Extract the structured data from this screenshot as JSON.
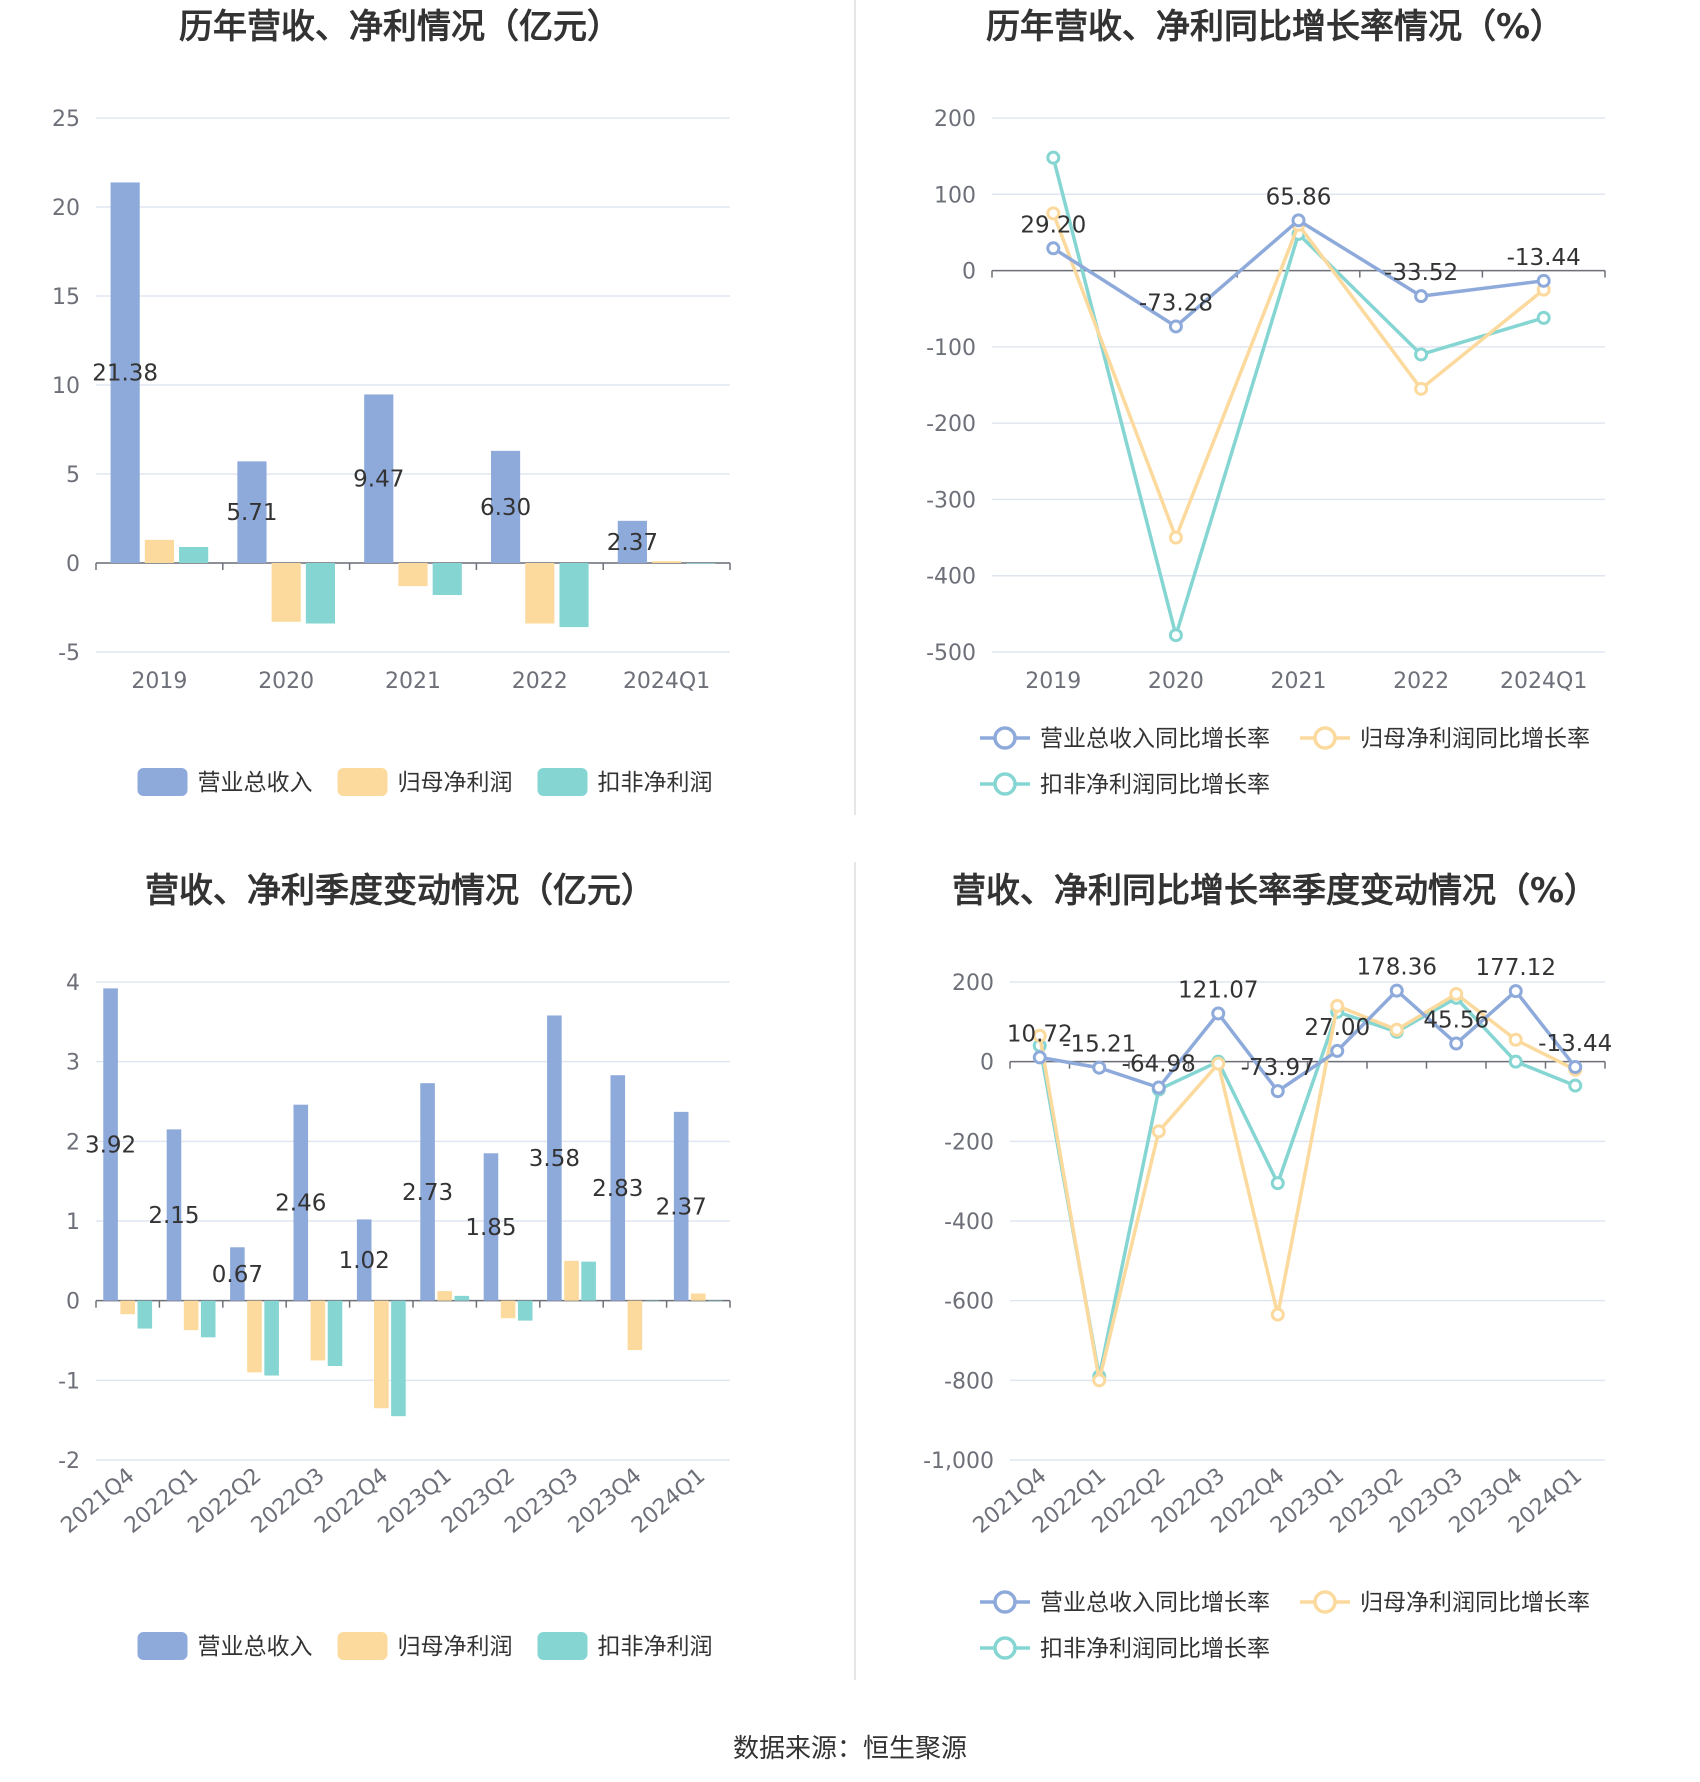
{
  "source_prefix": "数据来源：",
  "source_name": "恒生聚源",
  "chart_data": [
    {
      "type": "bar",
      "title": "历年营收、净利情况（亿元）",
      "categories": [
        "2019",
        "2020",
        "2021",
        "2022",
        "2024Q1"
      ],
      "ylim": [
        -5,
        25
      ],
      "yticks": [
        -5,
        0,
        5,
        10,
        15,
        20,
        25
      ],
      "series": [
        {
          "name": "营业总收入",
          "color": "#8eaadb",
          "values": [
            21.38,
            5.71,
            9.47,
            6.3,
            2.37
          ],
          "labels": [
            "21.38",
            "5.71",
            "9.47",
            "6.30",
            "2.37"
          ]
        },
        {
          "name": "归母净利润",
          "color": "#fcd99c",
          "values": [
            1.3,
            -3.3,
            -1.3,
            -3.4,
            0.1
          ]
        },
        {
          "name": "扣非净利润",
          "color": "#85d5d3",
          "values": [
            0.9,
            -3.4,
            -1.8,
            -3.6,
            0
          ]
        }
      ],
      "legend": "bottom"
    },
    {
      "type": "line",
      "title": "历年营收、净利同比增长率情况（%）",
      "categories": [
        "2019",
        "2020",
        "2021",
        "2022",
        "2024Q1"
      ],
      "ylim": [
        -500,
        200
      ],
      "yticks": [
        -500,
        -400,
        -300,
        -200,
        -100,
        0,
        100,
        200
      ],
      "series": [
        {
          "name": "营业总收入同比增长率",
          "color": "#8eaadb",
          "values": [
            29.2,
            -73.28,
            65.86,
            -33.52,
            -13.44
          ],
          "labels": [
            "29.20",
            "-73.28",
            "65.86",
            "-33.52",
            "-13.44"
          ]
        },
        {
          "name": "归母净利润同比增长率",
          "color": "#fcd99c",
          "values": [
            75,
            -350,
            60,
            -155,
            -25
          ]
        },
        {
          "name": "扣非净利润同比增长率",
          "color": "#85d5d3",
          "values": [
            148,
            -478,
            48,
            -110,
            -62
          ]
        }
      ],
      "legend": "bottom"
    },
    {
      "type": "bar",
      "title": "营收、净利季度变动情况（亿元）",
      "categories": [
        "2021Q4",
        "2022Q1",
        "2022Q2",
        "2022Q3",
        "2022Q4",
        "2023Q1",
        "2023Q2",
        "2023Q3",
        "2023Q4",
        "2024Q1"
      ],
      "ylim": [
        -2,
        4
      ],
      "yticks": [
        -2,
        -1,
        0,
        1,
        2,
        3,
        4
      ],
      "series": [
        {
          "name": "营业总收入",
          "color": "#8eaadb",
          "values": [
            3.92,
            2.15,
            0.67,
            2.46,
            1.02,
            2.73,
            1.85,
            3.58,
            2.83,
            2.37
          ],
          "labels": [
            "3.92",
            "2.15",
            "0.67",
            "2.46",
            "1.02",
            "2.73",
            "1.85",
            "3.58",
            "2.83",
            "2.37"
          ]
        },
        {
          "name": "归母净利润",
          "color": "#fcd99c",
          "values": [
            -0.17,
            -0.37,
            -0.9,
            -0.75,
            -1.35,
            0.12,
            -0.22,
            0.5,
            -0.62,
            0.09
          ]
        },
        {
          "name": "扣非净利润",
          "color": "#85d5d3",
          "values": [
            -0.35,
            -0.46,
            -0.94,
            -0.82,
            -1.45,
            0.06,
            -0.25,
            0.49,
            0,
            0
          ]
        }
      ],
      "legend": "bottom"
    },
    {
      "type": "line",
      "title": "营收、净利同比增长率季度变动情况（%）",
      "categories": [
        "2021Q4",
        "2022Q1",
        "2022Q2",
        "2022Q3",
        "2022Q4",
        "2023Q1",
        "2023Q2",
        "2023Q3",
        "2023Q4",
        "2024Q1"
      ],
      "ylim": [
        -1000,
        200
      ],
      "yticks": [
        -1000,
        -800,
        -600,
        -400,
        -200,
        0,
        200
      ],
      "ytick_labels": [
        "-1,000",
        "-800",
        "-600",
        "-400",
        "-200",
        "0",
        "200"
      ],
      "series": [
        {
          "name": "营业总收入同比增长率",
          "color": "#8eaadb",
          "values": [
            10.72,
            -15.21,
            -64.98,
            121.07,
            -73.97,
            27.0,
            178.36,
            45.56,
            177.12,
            -13.44
          ],
          "labels": [
            "10.72",
            "-15.21",
            "-64.98",
            "121.07",
            "-73.97",
            "27.00",
            "178.36",
            "45.56",
            "177.12",
            "-13.44"
          ]
        },
        {
          "name": "归母净利润同比增长率",
          "color": "#fcd99c",
          "values": [
            65,
            -800,
            -175,
            -5,
            -635,
            140,
            80,
            170,
            55,
            -20
          ]
        },
        {
          "name": "扣非净利润同比增长率",
          "color": "#85d5d3",
          "values": [
            40,
            -790,
            -70,
            0,
            -305,
            125,
            75,
            160,
            0,
            -60
          ]
        }
      ],
      "legend": "bottom"
    }
  ]
}
